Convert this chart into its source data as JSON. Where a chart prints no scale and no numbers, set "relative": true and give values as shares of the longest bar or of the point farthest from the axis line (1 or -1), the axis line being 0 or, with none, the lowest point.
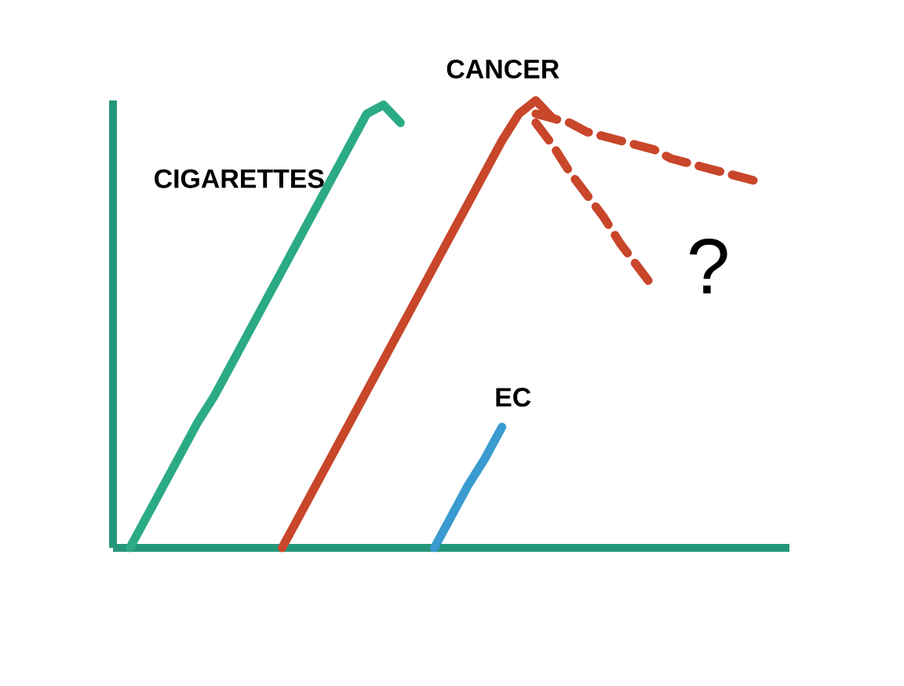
{
  "chart_data": {
    "type": "line",
    "relative": true,
    "categories": [
      null,
      null,
      null,
      null,
      null,
      null,
      null,
      null,
      null,
      null,
      null,
      null,
      null,
      null,
      null,
      null,
      null,
      null,
      null,
      null,
      null,
      null,
      null,
      null,
      null,
      null,
      null,
      null,
      null,
      null,
      null,
      null,
      null,
      null,
      null,
      null,
      null,
      null,
      null,
      null,
      null
    ],
    "series": [
      {
        "name": "CIGARETTES",
        "color": "#2bab85",
        "values": [
          null,
          0,
          0.07,
          0.14,
          0.21,
          0.28,
          0.34,
          0.41,
          0.48,
          0.55,
          0.62,
          0.69,
          0.76,
          0.83,
          0.9,
          0.97,
          0.99,
          0.95,
          null,
          null,
          null,
          null,
          null,
          null,
          null,
          null,
          null,
          null,
          null,
          null,
          null,
          null,
          null,
          null,
          null,
          null,
          null,
          null,
          null,
          null,
          null
        ]
      },
      {
        "name": "CANCER",
        "color": "#c8462a",
        "values": [
          null,
          null,
          null,
          null,
          null,
          null,
          null,
          null,
          null,
          null,
          0,
          0.07,
          0.14,
          0.21,
          0.28,
          0.35,
          0.42,
          0.49,
          0.56,
          0.63,
          0.7,
          0.77,
          0.84,
          0.91,
          0.97,
          1,
          0.96,
          null,
          null,
          null,
          null,
          null,
          null,
          null,
          null,
          null,
          null,
          null,
          null,
          null,
          null
        ]
      },
      {
        "color": "#c8462a",
        "line_style": "dashed",
        "values": [
          null,
          null,
          null,
          null,
          null,
          null,
          null,
          null,
          null,
          null,
          null,
          null,
          null,
          null,
          null,
          null,
          null,
          null,
          null,
          null,
          null,
          null,
          null,
          null,
          null,
          0.97,
          0.96,
          0.95,
          0.93,
          0.92,
          0.91,
          0.9,
          0.89,
          0.87,
          0.86,
          0.85,
          0.84,
          0.83,
          0.82,
          null,
          null
        ]
      },
      {
        "color": "#c8462a",
        "line_style": "dashed",
        "values": [
          null,
          null,
          null,
          null,
          null,
          null,
          null,
          null,
          null,
          null,
          null,
          null,
          null,
          null,
          null,
          null,
          null,
          null,
          null,
          null,
          null,
          null,
          null,
          null,
          null,
          0.95,
          0.9,
          0.84,
          0.79,
          0.74,
          0.68,
          0.63,
          0.58,
          null,
          null,
          null,
          null,
          null,
          null,
          null,
          null
        ]
      },
      {
        "name": "EC",
        "color": "#3a9bd0",
        "values": [
          null,
          null,
          null,
          null,
          null,
          null,
          null,
          null,
          null,
          null,
          null,
          null,
          null,
          null,
          null,
          null,
          null,
          null,
          null,
          0,
          0.07,
          0.14,
          0.2,
          0.27,
          null,
          null,
          null,
          null,
          null,
          null,
          null,
          null,
          null,
          null,
          null,
          null,
          null,
          null,
          null,
          null,
          null
        ]
      }
    ],
    "annotations": [
      "?"
    ]
  }
}
